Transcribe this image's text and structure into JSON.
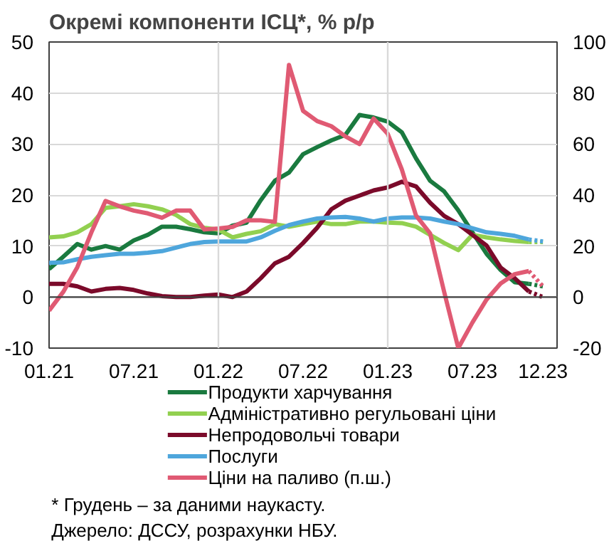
{
  "chart_data": {
    "type": "line",
    "title": "Окремі компоненти ІСЦ*, % р/р",
    "x": [
      "2021-01",
      "2021-02",
      "2021-03",
      "2021-04",
      "2021-05",
      "2021-06",
      "2021-07",
      "2021-08",
      "2021-09",
      "2021-10",
      "2021-11",
      "2021-12",
      "2022-01",
      "2022-02",
      "2022-03",
      "2022-04",
      "2022-05",
      "2022-06",
      "2022-07",
      "2022-08",
      "2022-09",
      "2022-10",
      "2022-11",
      "2022-12",
      "2023-01",
      "2023-02",
      "2023-03",
      "2023-04",
      "2023-05",
      "2023-06",
      "2023-07",
      "2023-08",
      "2023-09",
      "2023-10",
      "2023-11"
    ],
    "series": [
      {
        "name": "Продукти харчування",
        "color": "#1a7a3f",
        "values": [
          5.5,
          7.9,
          10.4,
          9.3,
          10,
          9.3,
          11.1,
          12.2,
          13.8,
          13.8,
          13.3,
          12.7,
          12.5,
          14,
          14.6,
          19,
          22.8,
          24.4,
          28,
          29.4,
          30.7,
          31.8,
          35.7,
          35.2,
          34.4,
          32.3,
          27.2,
          22.8,
          20.7,
          17,
          12.7,
          8.5,
          5.3,
          2.9,
          2.6
        ]
      },
      {
        "name": "Адміністративно регульовані ціни",
        "color": "#92d050",
        "values": [
          11.7,
          11.9,
          12.7,
          14.3,
          17.5,
          17.8,
          18.2,
          17.8,
          17.2,
          16.1,
          14.3,
          13.6,
          13.2,
          11.7,
          12.4,
          12.9,
          14.3,
          13.8,
          14.3,
          14.8,
          14.3,
          14.3,
          14.8,
          14.8,
          14.6,
          14.5,
          13.8,
          12.2,
          10.6,
          9.2,
          12.2,
          11.7,
          11.3,
          11,
          10.8
        ]
      },
      {
        "name": "Непродовольчі товари",
        "color": "#7b0a2a",
        "values": [
          2.6,
          2.6,
          2.1,
          1.1,
          1.6,
          1.8,
          1.4,
          0.7,
          0.2,
          0,
          0,
          0.3,
          0.5,
          0,
          1.1,
          3.7,
          6.6,
          7.9,
          10.6,
          13.6,
          17.2,
          18.9,
          19.9,
          20.9,
          21.5,
          22.6,
          21.7,
          18.5,
          15.9,
          14.3,
          12.2,
          10.1,
          5.8,
          3.7,
          1.1
        ]
      },
      {
        "name": "Послуги",
        "color": "#4ea6dc",
        "values": [
          6.7,
          6.8,
          7.4,
          7.9,
          8.2,
          8.5,
          8.5,
          8.7,
          9,
          9.7,
          10.4,
          10.8,
          10.9,
          10.9,
          10.9,
          11.7,
          13,
          14.1,
          14.8,
          15.4,
          15.6,
          15.7,
          15.4,
          14.8,
          15.4,
          15.6,
          15.6,
          15.4,
          14.8,
          14.3,
          13.5,
          12.7,
          12.4,
          12,
          11.3
        ]
      },
      {
        "name": "Ціни на паливо (п.ш.)",
        "color": "#e05a73",
        "axis": "y2",
        "values": [
          -5.3,
          2,
          11.7,
          25.4,
          37.7,
          35.6,
          33.9,
          32.8,
          31.1,
          33.9,
          33.9,
          26.5,
          26.9,
          27.5,
          30.1,
          30.1,
          29.5,
          91,
          73,
          69,
          67,
          63,
          60,
          70,
          64,
          50,
          32,
          25,
          2,
          -20,
          -10,
          -1,
          5.3,
          9,
          10.2
        ]
      },
      {
        "color": "#1a7a3f",
        "line_style": "dotted",
        "x": [
          "2023-11",
          "2023-12"
        ],
        "values": [
          2.6,
          2.1
        ]
      },
      {
        "color": "#92d050",
        "line_style": "dotted",
        "x": [
          "2023-11",
          "2023-12"
        ],
        "values": [
          10.8,
          10.8
        ]
      },
      {
        "color": "#7b0a2a",
        "line_style": "dotted",
        "x": [
          "2023-11",
          "2023-12"
        ],
        "values": [
          1.1,
          0
        ]
      },
      {
        "color": "#4ea6dc",
        "line_style": "dotted",
        "x": [
          "2023-11",
          "2023-12"
        ],
        "values": [
          11.3,
          10.9
        ]
      },
      {
        "color": "#e05a73",
        "line_style": "dotted",
        "axis": "y2",
        "x": [
          "2023-11",
          "2023-12"
        ],
        "values": [
          10.2,
          4.2
        ]
      }
    ],
    "xlim": [
      "2021-01",
      "2024-01"
    ],
    "xticks": [
      {
        "value": "2021-01",
        "label": "01.21"
      },
      {
        "value": "2021-07",
        "label": "07.21"
      },
      {
        "value": "2022-01",
        "label": "01.22"
      },
      {
        "value": "2022-07",
        "label": "07.22"
      },
      {
        "value": "2023-01",
        "label": "01.23"
      },
      {
        "value": "2023-07",
        "label": "07.23"
      },
      {
        "value": "2023-12",
        "label": "12.23"
      }
    ],
    "ylim": [
      -10,
      50
    ],
    "yticks": [
      -10,
      0,
      10,
      20,
      30,
      40,
      50
    ],
    "y2lim": [
      -20,
      100
    ],
    "y2ticks": [
      -20,
      0,
      20,
      40,
      60,
      80,
      100
    ],
    "grid": "y",
    "ref_lines": [
      {
        "axis": "x",
        "value": "2022-01",
        "color": "#d9d9d9"
      },
      {
        "axis": "x",
        "value": "2023-01",
        "color": "#d9d9d9"
      },
      {
        "axis": "y",
        "value": 0,
        "color": "#404040"
      }
    ],
    "legend": "bottom",
    "line_style": "solid",
    "annotations": [
      "* Грудень – за даними наукасту.",
      "Джерело: ДССУ, розрахунки НБУ."
    ]
  }
}
